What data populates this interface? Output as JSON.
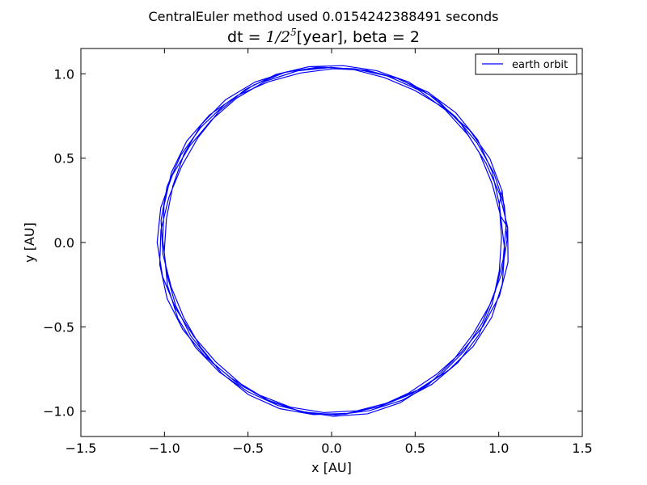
{
  "suptitle": "CentralEuler method used 0.0154242388491 seconds",
  "title": {
    "prefix": "dt = ",
    "math_base": "1/2",
    "math_exp": "5",
    "suffix": "[year], beta = 2"
  },
  "chart_data": {
    "type": "line",
    "xlabel": "x [AU]",
    "ylabel": "y [AU]",
    "xlim": [
      -1.5,
      1.5
    ],
    "ylim": [
      -1.15,
      1.15
    ],
    "xticks": [
      -1.5,
      -1.0,
      -0.5,
      0.0,
      0.5,
      1.0,
      1.5
    ],
    "xtick_labels": [
      "−1.5",
      "−1.0",
      "−0.5",
      "0.0",
      "0.5",
      "1.0",
      "1.5"
    ],
    "yticks": [
      -1.0,
      -0.5,
      0.0,
      0.5,
      1.0
    ],
    "ytick_labels": [
      "−1.0",
      "−0.5",
      "0.0",
      "0.5",
      "1.0"
    ],
    "grid": false,
    "legend_position": "top-right",
    "series": [
      {
        "name": "earth orbit",
        "color": "#0000ff",
        "orbits": 5,
        "points_per_orbit": 32,
        "x": [],
        "y": []
      }
    ]
  }
}
